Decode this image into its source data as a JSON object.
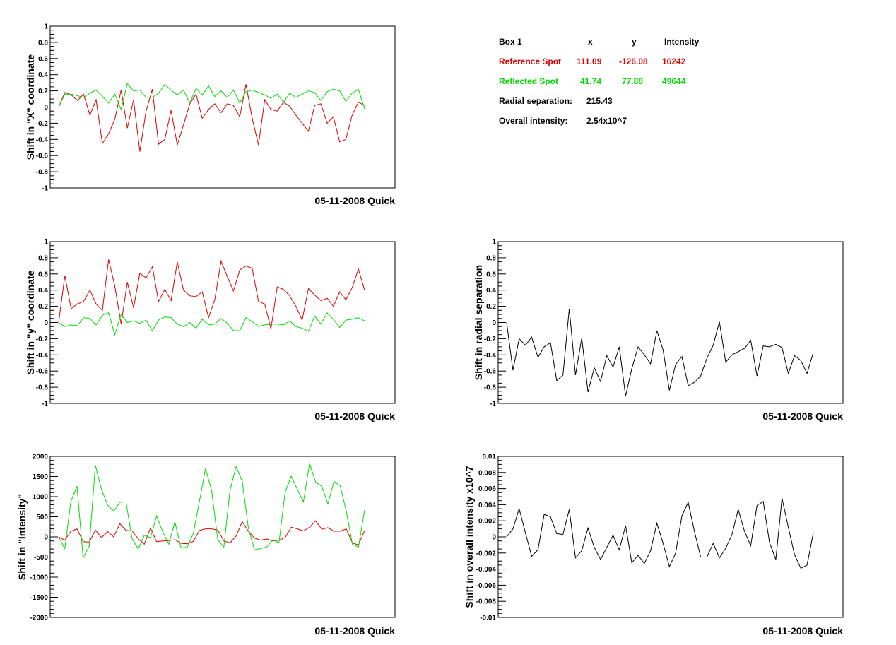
{
  "colors": {
    "red": "#dd0000",
    "green": "#00dd00",
    "black": "#000000"
  },
  "info_box": {
    "header": {
      "label": "Box 1",
      "x": "x",
      "y": "y",
      "intensity": "Intensity"
    },
    "reference": {
      "label": "Reference Spot",
      "x": "111.09",
      "y": "-126.08",
      "intensity": "16242"
    },
    "reflected": {
      "label": "Reflected Spot",
      "x": "41.74",
      "y": "77.88",
      "intensity": "49644"
    },
    "radial": {
      "label": "Radial separation:",
      "value": "215.43"
    },
    "overall": {
      "label": "Overall intensity:",
      "value": "2.54x10^7"
    }
  },
  "chart_data": [
    {
      "type": "line",
      "ylabel": "Shift in \"X\" coordinate",
      "footer": "05-11-2008 Quick",
      "ylim": [
        -1,
        1
      ],
      "yticks": [
        "1",
        "0.8",
        "0.6",
        "0.4",
        "0.2",
        "0",
        "-0.2",
        "-0.4",
        "-0.6",
        "-0.8",
        "-1"
      ],
      "tickvals": [
        1,
        0.8,
        0.6,
        0.4,
        0.2,
        0,
        -0.2,
        -0.4,
        -0.6,
        -0.8,
        -1
      ],
      "ndiv": 4,
      "series": [
        {
          "color": "red",
          "values": [
            0.0,
            0.18,
            0.15,
            0.08,
            0.16,
            -0.1,
            0.09,
            -0.45,
            -0.33,
            -0.15,
            0.21,
            -0.26,
            0.09,
            -0.55,
            -0.05,
            0.22,
            -0.46,
            -0.4,
            -0.04,
            -0.47,
            -0.22,
            0.04,
            0.16,
            -0.14,
            -0.03,
            0.04,
            -0.07,
            0.04,
            0.02,
            -0.12,
            0.28,
            -0.14,
            -0.47,
            0.09,
            -0.03,
            -0.05,
            0.06,
            0.01,
            -0.1,
            -0.2,
            -0.3,
            0.02,
            0.04,
            -0.2,
            -0.12,
            -0.43,
            -0.4,
            -0.1,
            0.06,
            0.02
          ]
        },
        {
          "color": "green",
          "values": [
            0.0,
            0.16,
            0.16,
            0.14,
            0.12,
            0.17,
            0.21,
            0.13,
            0.05,
            0.16,
            -0.03,
            0.29,
            0.2,
            0.21,
            0.12,
            0.12,
            0.17,
            0.28,
            0.21,
            0.15,
            0.21,
            0.05,
            0.23,
            0.15,
            0.26,
            0.13,
            0.2,
            0.12,
            0.21,
            0.05,
            0.19,
            0.21,
            0.18,
            0.15,
            0.11,
            0.16,
            0.06,
            0.17,
            0.12,
            0.16,
            0.2,
            0.18,
            0.08,
            0.19,
            0.22,
            0.2,
            0.07,
            0.17,
            0.22,
            -0.02
          ]
        }
      ]
    },
    {
      "type": "line",
      "ylabel": "Shift in \"y\" coordinate",
      "footer": "05-11-2008 Quick",
      "ylim": [
        -1,
        1
      ],
      "yticks": [
        "1",
        "0.8",
        "0.6",
        "0.4",
        "0.2",
        "0",
        "-0.2",
        "-0.4",
        "-0.6",
        "-0.8",
        "-1"
      ],
      "tickvals": [
        1,
        0.8,
        0.6,
        0.4,
        0.2,
        0,
        -0.2,
        -0.4,
        -0.6,
        -0.8,
        -1
      ],
      "ndiv": 4,
      "series": [
        {
          "color": "red",
          "values": [
            0.0,
            0.58,
            0.17,
            0.23,
            0.26,
            0.4,
            0.23,
            0.15,
            0.78,
            0.45,
            -0.02,
            0.5,
            0.18,
            0.61,
            0.55,
            0.69,
            0.26,
            0.41,
            0.27,
            0.75,
            0.4,
            0.33,
            0.32,
            0.38,
            0.06,
            0.28,
            0.76,
            0.57,
            0.39,
            0.65,
            0.7,
            0.67,
            0.26,
            0.23,
            -0.08,
            0.44,
            0.41,
            0.33,
            0.2,
            0.03,
            0.42,
            0.34,
            0.27,
            0.3,
            0.2,
            0.38,
            0.28,
            0.43,
            0.66,
            0.4
          ]
        },
        {
          "color": "green",
          "values": [
            0.0,
            -0.05,
            -0.03,
            -0.04,
            0.06,
            0.05,
            -0.03,
            0.09,
            0.12,
            -0.15,
            0.1,
            0.0,
            0.02,
            -0.01,
            0.03,
            -0.1,
            0.03,
            0.07,
            0.06,
            -0.02,
            -0.05,
            0.0,
            -0.07,
            0.04,
            -0.03,
            -0.02,
            0.05,
            -0.01,
            -0.1,
            -0.1,
            0.06,
            0.01,
            -0.05,
            -0.03,
            -0.02,
            -0.02,
            -0.03,
            0.02,
            -0.05,
            -0.07,
            -0.11,
            0.08,
            -0.02,
            0.12,
            0.04,
            -0.06,
            0.03,
            0.04,
            0.06,
            0.02
          ]
        }
      ]
    },
    {
      "type": "line",
      "ylabel": "Shift in radial separation",
      "footer": "05-11-2008 Quick",
      "ylim": [
        -1,
        1
      ],
      "yticks": [
        "1",
        "0.8",
        "0.6",
        "0.4",
        "0.2",
        "0",
        "-0.2",
        "-0.4",
        "-0.6",
        "-0.8",
        "-1"
      ],
      "tickvals": [
        1,
        0.8,
        0.6,
        0.4,
        0.2,
        0,
        -0.2,
        -0.4,
        -0.6,
        -0.8,
        -1
      ],
      "ndiv": 4,
      "series": [
        {
          "color": "black",
          "values": [
            0.0,
            -0.59,
            -0.2,
            -0.28,
            -0.18,
            -0.43,
            -0.3,
            -0.25,
            -0.72,
            -0.65,
            0.17,
            -0.65,
            -0.19,
            -0.86,
            -0.56,
            -0.73,
            -0.41,
            -0.55,
            -0.3,
            -0.91,
            -0.57,
            -0.3,
            -0.4,
            -0.51,
            -0.1,
            -0.34,
            -0.84,
            -0.52,
            -0.42,
            -0.78,
            -0.74,
            -0.66,
            -0.44,
            -0.28,
            0.01,
            -0.49,
            -0.4,
            -0.36,
            -0.32,
            -0.22,
            -0.66,
            -0.29,
            -0.3,
            -0.27,
            -0.31,
            -0.63,
            -0.41,
            -0.47,
            -0.63,
            -0.37
          ]
        }
      ]
    },
    {
      "type": "line",
      "ylabel": "Shift in \"Intensity\"",
      "footer": "05-11-2008 Quick",
      "ylim": [
        -2000,
        2000
      ],
      "yticks": [
        "2000",
        "1500",
        "1000",
        "500",
        "0",
        "-500",
        "-1000",
        "-1500",
        "-2000"
      ],
      "tickvals": [
        2000,
        1500,
        1000,
        500,
        0,
        -500,
        -1000,
        -1500,
        -2000
      ],
      "ndiv": 5,
      "series": [
        {
          "color": "red",
          "values": [
            0,
            -80,
            140,
            200,
            -120,
            -130,
            170,
            -20,
            130,
            0,
            330,
            160,
            150,
            -50,
            -180,
            220,
            -120,
            -100,
            -90,
            -70,
            -160,
            -170,
            -110,
            160,
            200,
            200,
            170,
            -100,
            -150,
            20,
            380,
            140,
            -30,
            -80,
            -50,
            -100,
            -80,
            -20,
            240,
            200,
            150,
            240,
            400,
            190,
            230,
            140,
            140,
            200,
            -150,
            -200,
            160
          ]
        },
        {
          "color": "green",
          "values": [
            0,
            -290,
            880,
            1260,
            -520,
            -230,
            1780,
            1180,
            790,
            640,
            860,
            870,
            -40,
            -300,
            40,
            -20,
            520,
            130,
            -180,
            370,
            -270,
            -260,
            80,
            880,
            1700,
            1150,
            -70,
            -250,
            1160,
            1750,
            1380,
            220,
            -320,
            -290,
            -250,
            -70,
            -150,
            1100,
            1510,
            1180,
            870,
            1830,
            1360,
            1260,
            820,
            1380,
            1270,
            640,
            -180,
            -250,
            670
          ]
        }
      ]
    },
    {
      "type": "line",
      "ylabel": "Shift in overall intensity x10^7",
      "footer": "05-11-2008 Quick",
      "ylim": [
        -0.01,
        0.01
      ],
      "yticks": [
        "0.01",
        "0.008",
        "0.006",
        "0.004",
        "0.002",
        "0",
        "-0.002",
        "-0.004",
        "-0.006",
        "-0.008",
        "-0.01"
      ],
      "tickvals": [
        0.01,
        0.008,
        0.006,
        0.004,
        0.002,
        0,
        -0.002,
        -0.004,
        -0.006,
        -0.008,
        -0.01
      ],
      "ndiv": 4,
      "series": [
        {
          "color": "black",
          "values": [
            0.0,
            0.001,
            0.0035,
            0.0005,
            -0.0024,
            -0.0016,
            0.0028,
            0.0025,
            0.0004,
            0.0003,
            0.0034,
            -0.0026,
            -0.0017,
            0.0011,
            -0.0013,
            -0.0028,
            -0.0013,
            0.0002,
            -0.0016,
            0.0014,
            -0.0032,
            -0.0023,
            -0.0033,
            -0.0017,
            0.0017,
            -0.0008,
            -0.0037,
            -0.002,
            0.0026,
            0.0043,
            0.0007,
            -0.0025,
            -0.0025,
            -0.0008,
            -0.0026,
            -0.0014,
            0.0003,
            0.0034,
            0.0007,
            -0.0011,
            0.0039,
            0.0044,
            -0.0007,
            -0.0028,
            0.0048,
            0.0012,
            -0.0022,
            -0.0039,
            -0.0035,
            0.0005
          ]
        }
      ]
    }
  ]
}
